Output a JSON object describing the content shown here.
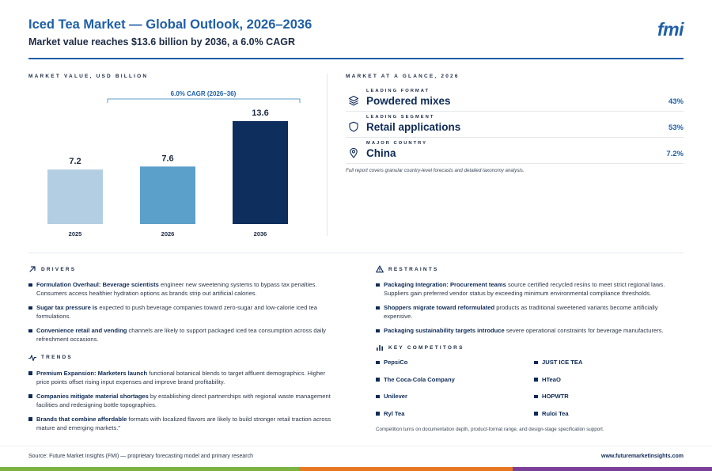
{
  "header": {
    "title": "Iced Tea Market — Global Outlook, 2026–2036",
    "subtitle": "Market value reaches $13.6 billion by 2036, a 6.0% CAGR",
    "logo": "fmi"
  },
  "chart_data": {
    "type": "bar",
    "title": "MARKET VALUE, USD BILLION",
    "categories": [
      "2025",
      "2026",
      "2036"
    ],
    "values": [
      7.2,
      7.6,
      13.6
    ],
    "value_labels": [
      "7.2",
      "7.6",
      "13.6"
    ],
    "bar_colors": [
      "#b3cee3",
      "#5b9fcb",
      "#0e2f5e"
    ],
    "annotation": "6.0% CAGR (2026–36)",
    "ylim": [
      0,
      13.6
    ],
    "grid": false
  },
  "glance": {
    "label": "MARKET AT A GLANCE, 2026",
    "items": [
      {
        "kicker": "LEADING FORMAT",
        "value": "Powdered mixes",
        "pct": "43%",
        "icon": "layers-icon"
      },
      {
        "kicker": "LEADING SEGMENT",
        "value": "Retail applications",
        "pct": "53%",
        "icon": "shield-icon"
      },
      {
        "kicker": "MAJOR COUNTRY",
        "value": "China",
        "pct": "7.2%",
        "icon": "map-pin-icon"
      }
    ],
    "note": "Full report covers granular country-level forecasts and detailed taxonomy analysis."
  },
  "drivers": {
    "label": "DRIVERS",
    "items": [
      {
        "bold": "Formulation Overhaul: Beverage scientists",
        "rest": " engineer new sweetening systems to bypass tax penalties. Consumers access healthier hydration options as brands strip out artificial calories."
      },
      {
        "bold": "Sugar tax pressure is",
        "rest": " expected to push beverage companies toward zero-sugar and low-calorie iced tea formulations."
      },
      {
        "bold": "Convenience retail and vending",
        "rest": " channels are likely to support packaged iced tea consumption across daily refreshment occasions."
      }
    ]
  },
  "trends": {
    "label": "TRENDS",
    "items": [
      {
        "bold": "Premium Expansion: Marketers launch",
        "rest": " functional botanical blends to target affluent demographics. Higher price points offset rising input expenses and improve brand profitability."
      },
      {
        "bold": "Companies mitigate material shortages",
        "rest": " by establishing direct partnerships with regional waste management facilities and redesigning bottle topographies."
      },
      {
        "bold": "Brands that combine affordable",
        "rest": " formats with localized flavors are likely to build stronger retail traction across mature and emerging markets.\""
      }
    ]
  },
  "restraints": {
    "label": "RESTRAINTS",
    "items": [
      {
        "bold": "Packaging Integration: Procurement teams",
        "rest": " source certified recycled resins to meet strict regional laws. Suppliers gain preferred vendor status by exceeding minimum environmental compliance thresholds."
      },
      {
        "bold": "Shoppers migrate toward reformulated",
        "rest": " products as traditional sweetened variants become artificially expensive."
      },
      {
        "bold": "Packaging sustainability targets introduce",
        "rest": " severe operational constraints for beverage manufacturers."
      }
    ]
  },
  "competitors": {
    "label": "KEY COMPETITORS",
    "names": [
      "PepsiCo",
      "JUST ICE TEA",
      "The Coca-Cola Company",
      "HTeaO",
      "Unilever",
      "HOPWTR",
      "Ryl Tea",
      "Ruloi Tea"
    ],
    "note": "Competition turns on documentation depth, product-format range, and design-stage specification support."
  },
  "footer": {
    "source": "Source: Future Market Insights (FMI) — proprietary forecasting model and primary research",
    "site": "www.futuremarketinsights.com",
    "strip_colors": [
      "#7bb241",
      "#e87722",
      "#7c3f98"
    ]
  },
  "colors": {
    "accent": "#1f5fa8",
    "navy": "#0e2a55"
  }
}
